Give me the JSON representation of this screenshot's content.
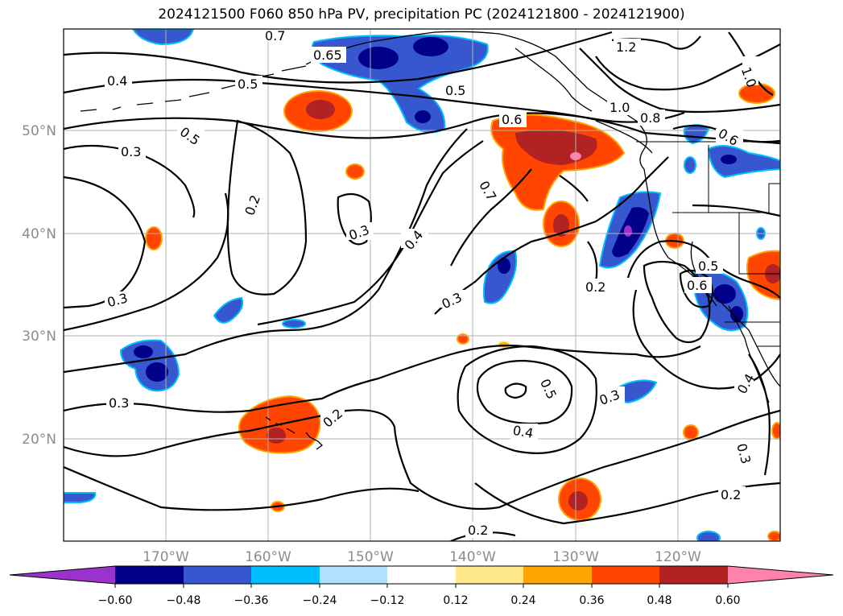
{
  "title": "2024121500 F060 850 hPa PV, precipitation PC (2024121800 - 2024121900)",
  "map": {
    "lat_labels": [
      "50°N",
      "40°N",
      "30°N",
      "20°N"
    ],
    "lon_labels": [
      "170°W",
      "160°W",
      "150°W",
      "140°W",
      "130°W",
      "120°W"
    ],
    "contour_labels": [
      "0.4",
      "0.5",
      "0.65",
      "0.7",
      "1.2",
      "1.0",
      "0.5",
      "1.0",
      "0.8",
      "0.6",
      "0.6",
      "0.5",
      "0.3",
      "0.2",
      "0.3",
      "0.4",
      "0.7",
      "0.3",
      "0.2",
      "0.5",
      "0.6",
      "0.3",
      "0.2",
      "0.3",
      "0.5",
      "0.4",
      "0.3",
      "0.4",
      "0.2",
      "0.3",
      "0.2",
      "0.2"
    ],
    "colors": {
      "land_outline": "#000000",
      "grid": "#b0b0b0",
      "contour": "#000000"
    }
  },
  "colorbar": {
    "ticks": [
      "−0.60",
      "−0.48",
      "−0.36",
      "−0.24",
      "−0.12",
      "0.12",
      "0.24",
      "0.36",
      "0.48",
      "0.60"
    ],
    "colors": [
      "#9a32cd",
      "#00008b",
      "#3657cd",
      "#00bfff",
      "#b0e2ff",
      "#ffffff",
      "#ffe78b",
      "#ffa500",
      "#ff4500",
      "#b22222",
      "#ff82ab"
    ]
  }
}
